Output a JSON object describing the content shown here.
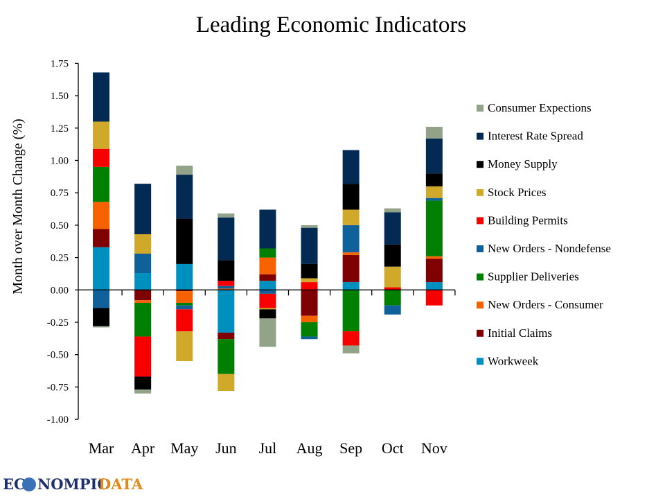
{
  "chart_data": {
    "type": "bar",
    "stacked": true,
    "title": "Leading Economic Indicators",
    "xlabel": "",
    "ylabel": "Month over Month Change (%)",
    "ylim": [
      -1.0,
      1.75
    ],
    "yticks": [
      "1.75",
      "1.50",
      "1.25",
      "1.00",
      "0.75",
      "0.50",
      "0.25",
      "0.00",
      "-0.25",
      "-0.50",
      "-0.75",
      "-1.00"
    ],
    "ytick_values": [
      1.75,
      1.5,
      1.25,
      1.0,
      0.75,
      0.5,
      0.25,
      0,
      -0.25,
      -0.5,
      -0.75,
      -1.0
    ],
    "grid": false,
    "legend_position": "right",
    "categories": [
      "Mar",
      "Apr",
      "May",
      "Jun",
      "Jul",
      "Aug",
      "Sep",
      "Oct",
      "Nov"
    ],
    "series": [
      {
        "name": "Workweek",
        "color": "#0090C0",
        "values": [
          0.33,
          0.13,
          0.2,
          -0.33,
          0.07,
          0,
          0.06,
          0,
          0.06
        ]
      },
      {
        "name": "Initial Claims",
        "color": "#7F0000",
        "values": [
          0.14,
          -0.08,
          -0.01,
          -0.05,
          0.05,
          -0.2,
          0.21,
          0,
          0.18
        ]
      },
      {
        "name": "New Orders - Consumer",
        "color": "#F76200",
        "values": [
          0.21,
          -0.02,
          -0.09,
          0.01,
          0.13,
          -0.05,
          0.02,
          0,
          0.02
        ]
      },
      {
        "name": "Supplier Deliveries",
        "color": "#007F00",
        "values": [
          0.27,
          -0.26,
          -0.02,
          -0.27,
          0.07,
          -0.11,
          -0.32,
          -0.12,
          0.43
        ]
      },
      {
        "name": "New Orders - Nondefense",
        "color": "#10609A",
        "values": [
          -0.14,
          0.15,
          -0.03,
          0.02,
          -0.03,
          -0.02,
          0.21,
          -0.07,
          0.02
        ]
      },
      {
        "name": "Building Permits",
        "color": "#F70000",
        "values": [
          0.14,
          -0.31,
          -0.17,
          0.04,
          -0.11,
          0.06,
          -0.11,
          0.02,
          -0.12
        ]
      },
      {
        "name": "Stock Prices",
        "color": "#D0A92A",
        "values": [
          0.21,
          0.15,
          -0.23,
          -0.13,
          -0.01,
          0.03,
          0.12,
          0.16,
          0.09
        ]
      },
      {
        "name": "Money Supply",
        "color": "#000000",
        "values": [
          -0.14,
          -0.1,
          0.35,
          0.16,
          -0.07,
          0.11,
          0.2,
          0.17,
          0.1
        ]
      },
      {
        "name": "Interest Rate Spread",
        "color": "#022A52",
        "values": [
          0.38,
          0.39,
          0.34,
          0.33,
          0.3,
          0.28,
          0.26,
          0.25,
          0.27
        ]
      },
      {
        "name": "Consumer Expections",
        "color": "#93A38A",
        "values": [
          -0.01,
          -0.03,
          0.07,
          0.03,
          -0.22,
          0.02,
          -0.06,
          0.03,
          0.09
        ]
      }
    ]
  },
  "logo": {
    "text": "ECONOMPICDATA"
  }
}
